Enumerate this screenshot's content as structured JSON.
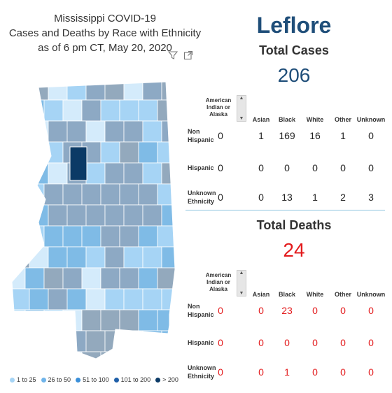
{
  "title": {
    "line1": "Mississippi COVID-19",
    "line2": "Cases and Deaths by Race with Ethnicity",
    "line3": "as of 6 pm CT, May 20, 2020"
  },
  "icons": [
    "filter-icon",
    "focus-mode-icon"
  ],
  "legend": [
    {
      "label": "1 to 25",
      "color": "#a6d4f5"
    },
    {
      "label": "26 to 50",
      "color": "#6fb4ea"
    },
    {
      "label": "51 to 100",
      "color": "#3a8fd9"
    },
    {
      "label": "101 to 200",
      "color": "#1f5fa8"
    },
    {
      "label": "> 200",
      "color": "#0b3a66"
    }
  ],
  "map_colors": {
    "c1": "#d4ebfb",
    "c2": "#a6d4f5",
    "c3": "#7fbbe6",
    "c4": "#8da9c4",
    "c5": "#93a9bd",
    "highlight": "#0b3a66",
    "grey": "#e6e6e6",
    "border": "#ffffff"
  },
  "county": "Leflore",
  "cases": {
    "label": "Total Cases",
    "value": "206",
    "col_headers": [
      "American Indian or Alaska",
      "Asian",
      "Black",
      "White",
      "Other",
      "Unknown"
    ],
    "rows": [
      {
        "label": [
          "Non",
          "Hispanic"
        ],
        "values": [
          "0",
          "1",
          "169",
          "16",
          "1",
          "0"
        ]
      },
      {
        "label": [
          "Hispanic"
        ],
        "values": [
          "0",
          "0",
          "0",
          "0",
          "0",
          "0"
        ]
      },
      {
        "label": [
          "Unknown",
          "Ethnicity"
        ],
        "values": [
          "0",
          "0",
          "13",
          "1",
          "2",
          "3"
        ]
      }
    ]
  },
  "deaths": {
    "label": "Total Deaths",
    "value": "24",
    "col_headers": [
      "American Indian or Alaska",
      "Asian",
      "Black",
      "White",
      "Other",
      "Unknown"
    ],
    "rows": [
      {
        "label": [
          "Non",
          "Hispanic"
        ],
        "values": [
          "0",
          "0",
          "23",
          "0",
          "0",
          "0"
        ]
      },
      {
        "label": [
          "Hispanic"
        ],
        "values": [
          "0",
          "0",
          "0",
          "0",
          "0",
          "0"
        ]
      },
      {
        "label": [
          "Unknown",
          "Ethnicity"
        ],
        "values": [
          "0",
          "0",
          "1",
          "0",
          "0",
          "0"
        ]
      }
    ]
  }
}
